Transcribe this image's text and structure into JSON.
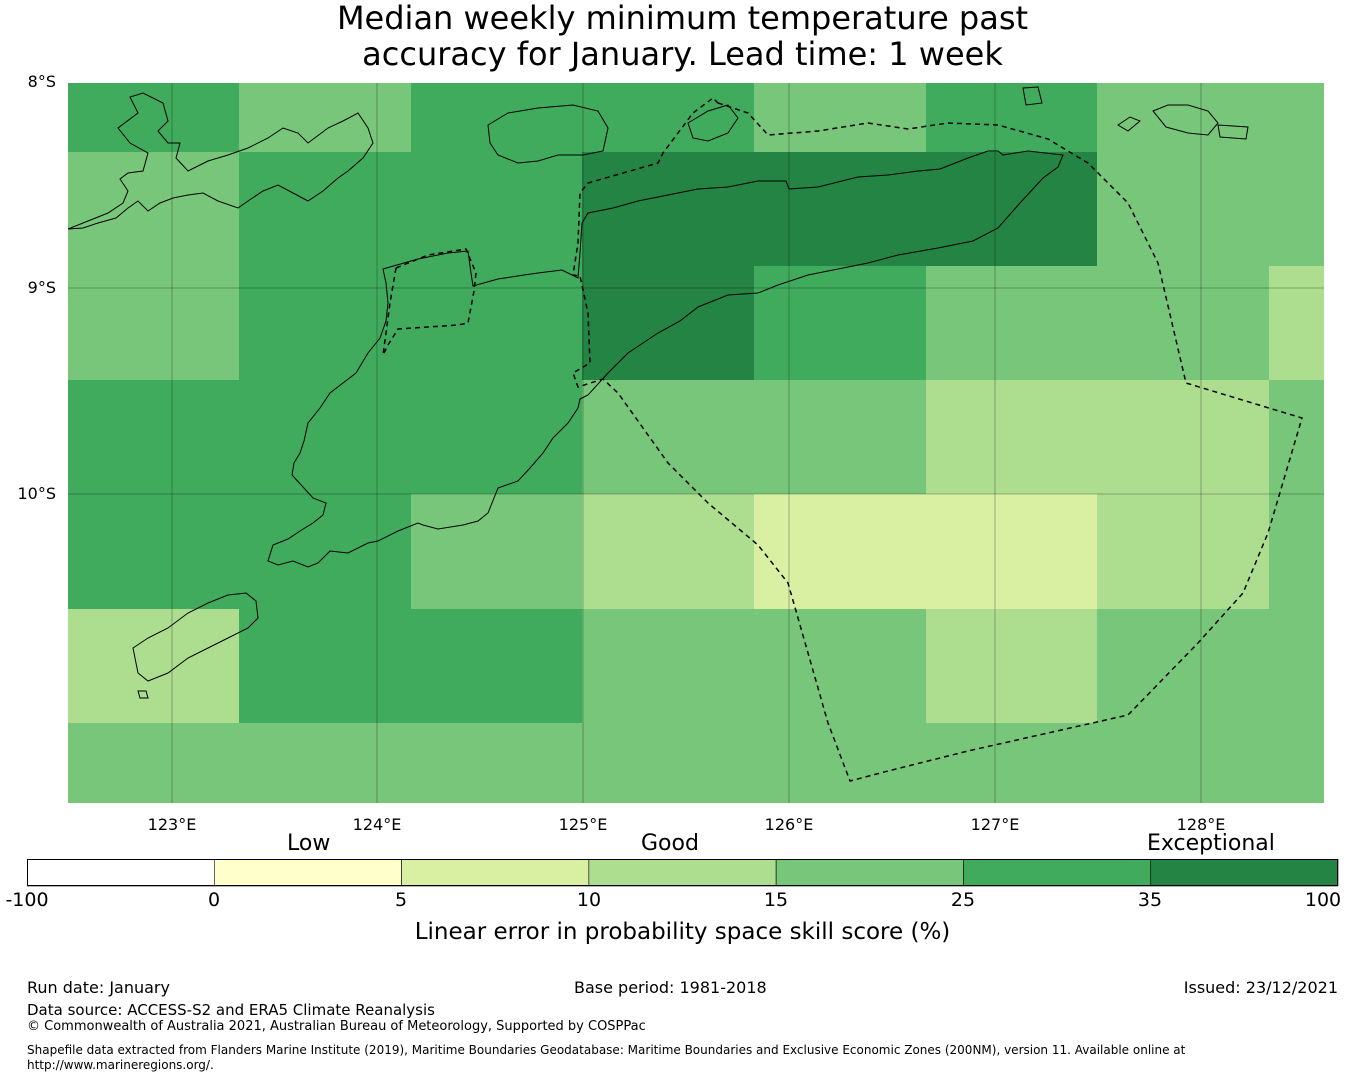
{
  "title": {
    "line1": "Median weekly minimum temperature past",
    "line2": "accuracy for January. Lead time: 1 week"
  },
  "map": {
    "lat_labels": [
      "8°S",
      "9°S",
      "10°S"
    ],
    "lon_labels": [
      "123°E",
      "124°E",
      "125°E",
      "126°E",
      "127°E",
      "128°E"
    ],
    "grid_rows": [
      [
        25,
        15,
        25,
        25,
        15,
        25,
        15,
        15
      ],
      [
        15,
        25,
        25,
        35,
        35,
        35,
        15,
        15
      ],
      [
        15,
        25,
        25,
        35,
        25,
        15,
        15,
        10
      ],
      [
        25,
        25,
        25,
        15,
        15,
        10,
        10,
        15
      ],
      [
        25,
        25,
        15,
        10,
        5,
        5,
        10,
        15
      ],
      [
        10,
        25,
        25,
        15,
        15,
        10,
        15,
        15
      ],
      [
        15,
        15,
        15,
        15,
        15,
        15,
        15,
        15
      ]
    ]
  },
  "legend": {
    "categories": [
      "Low",
      "Good",
      "Exceptional"
    ],
    "ticks": [
      "-100",
      "0",
      "5",
      "10",
      "15",
      "25",
      "35",
      "100"
    ],
    "colors": [
      "#ffffff",
      "#ffffcc",
      "#d9f0a3",
      "#addd8e",
      "#78c679",
      "#41ab5d",
      "#238443"
    ],
    "label": "Linear error in probability space skill score (%)"
  },
  "footer": {
    "run_date": "Run date: January",
    "base_period": "Base period: 1981-2018",
    "issued": "Issued: 23/12/2021",
    "data_source": "Data source: ACCESS-S2 and ERA5 Climate Reanalysis",
    "copyright": "© Commonwealth of Australia 2021, Australian Bureau of Meteorology, Supported by COSPPac",
    "shapefile_line1": "Shapefile data extracted from Flanders Marine Institute (2019), Maritime Boundaries Geodatabase: Maritime Boundaries and Exclusive Economic Zones (200NM), version 11. Available online at",
    "shapefile_line2": "http://www.marineregions.org/."
  }
}
